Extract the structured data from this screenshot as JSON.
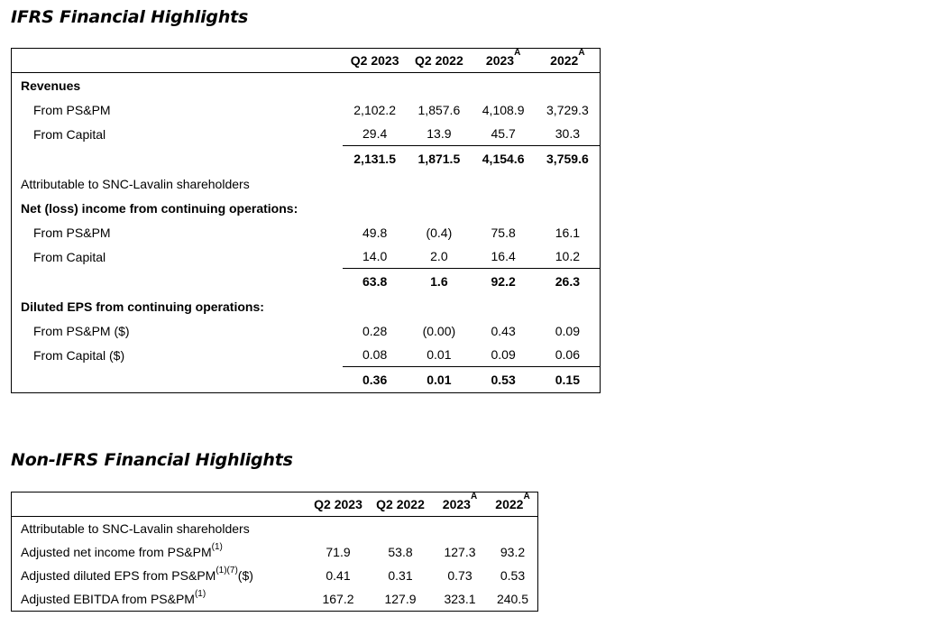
{
  "ifrs": {
    "title": "IFRS Financial Highlights",
    "columns": [
      {
        "text": "Q2 2023",
        "sup": ""
      },
      {
        "text": "Q2 2022",
        "sup": ""
      },
      {
        "text": "2023",
        "sup": "A"
      },
      {
        "text": "2022",
        "sup": "A"
      }
    ],
    "rows": [
      {
        "label": {
          "text": "Revenues",
          "sup": "",
          "after": ""
        },
        "style": "section",
        "values": [
          "",
          "",
          "",
          ""
        ],
        "rule": false,
        "total": false
      },
      {
        "label": {
          "text": "From PS&PM",
          "sup": "",
          "after": ""
        },
        "style": "indent",
        "values": [
          "2,102.2",
          "1,857.6",
          "4,108.9",
          "3,729.3"
        ],
        "rule": false,
        "total": false
      },
      {
        "label": {
          "text": "From Capital",
          "sup": "",
          "after": ""
        },
        "style": "indent",
        "values": [
          "29.4",
          "13.9",
          "45.7",
          "30.3"
        ],
        "rule": true,
        "total": false
      },
      {
        "label": {
          "text": "",
          "sup": "",
          "after": ""
        },
        "style": "plain",
        "values": [
          "2,131.5",
          "1,871.5",
          "4,154.6",
          "3,759.6"
        ],
        "rule": false,
        "total": true
      },
      {
        "label": {
          "text": "Attributable to SNC-Lavalin shareholders",
          "sup": "",
          "after": ""
        },
        "style": "plain",
        "values": [
          "",
          "",
          "",
          ""
        ],
        "rule": false,
        "total": false
      },
      {
        "label": {
          "text": "Net (loss) income from continuing operations:",
          "sup": "",
          "after": ""
        },
        "style": "section",
        "values": [
          "",
          "",
          "",
          ""
        ],
        "rule": false,
        "total": false
      },
      {
        "label": {
          "text": "From PS&PM",
          "sup": "",
          "after": ""
        },
        "style": "indent",
        "values": [
          "49.8",
          "(0.4)",
          "75.8",
          "16.1"
        ],
        "rule": false,
        "total": false
      },
      {
        "label": {
          "text": "From Capital",
          "sup": "",
          "after": ""
        },
        "style": "indent",
        "values": [
          "14.0",
          "2.0",
          "16.4",
          "10.2"
        ],
        "rule": true,
        "total": false
      },
      {
        "label": {
          "text": "",
          "sup": "",
          "after": ""
        },
        "style": "plain",
        "values": [
          "63.8",
          "1.6",
          "92.2",
          "26.3"
        ],
        "rule": false,
        "total": true
      },
      {
        "label": {
          "text": "Diluted EPS from continuing operations:",
          "sup": "",
          "after": ""
        },
        "style": "section",
        "values": [
          "",
          "",
          "",
          ""
        ],
        "rule": false,
        "total": false
      },
      {
        "label": {
          "text": "From PS&PM ($)",
          "sup": "",
          "after": ""
        },
        "style": "indent",
        "values": [
          "0.28",
          "(0.00)",
          "0.43",
          "0.09"
        ],
        "rule": false,
        "total": false
      },
      {
        "label": {
          "text": "From Capital ($)",
          "sup": "",
          "after": ""
        },
        "style": "indent",
        "values": [
          "0.08",
          "0.01",
          "0.09",
          "0.06"
        ],
        "rule": true,
        "total": false
      },
      {
        "label": {
          "text": "",
          "sup": "",
          "after": ""
        },
        "style": "plain",
        "values": [
          "0.36",
          "0.01",
          "0.53",
          "0.15"
        ],
        "rule": false,
        "total": true
      }
    ]
  },
  "non_ifrs": {
    "title": "Non-IFRS Financial Highlights",
    "columns": [
      {
        "text": "Q2 2023",
        "sup": ""
      },
      {
        "text": "Q2 2022",
        "sup": ""
      },
      {
        "text": "2023",
        "sup": "A"
      },
      {
        "text": "2022",
        "sup": "A"
      }
    ],
    "rows": [
      {
        "label": {
          "text": "Attributable to SNC-Lavalin shareholders",
          "sup": "",
          "after": ""
        },
        "style": "plain",
        "values": [
          "",
          "",
          "",
          ""
        ],
        "rule": false,
        "total": false
      },
      {
        "label": {
          "text": "Adjusted net income from PS&PM",
          "sup": "(1)",
          "after": ""
        },
        "style": "plain",
        "values": [
          "71.9",
          "53.8",
          "127.3",
          "93.2"
        ],
        "rule": false,
        "total": false
      },
      {
        "label": {
          "text": "Adjusted diluted EPS from PS&PM",
          "sup": "(1)(7)",
          "after": " ($)"
        },
        "style": "plain",
        "values": [
          "0.41",
          "0.31",
          "0.73",
          "0.53"
        ],
        "rule": false,
        "total": false
      },
      {
        "label": {
          "text": "Adjusted EBITDA from PS&PM",
          "sup": "(1)",
          "after": ""
        },
        "style": "plain",
        "values": [
          "167.2",
          "127.9",
          "323.1",
          "240.5"
        ],
        "rule": false,
        "total": false
      }
    ]
  }
}
